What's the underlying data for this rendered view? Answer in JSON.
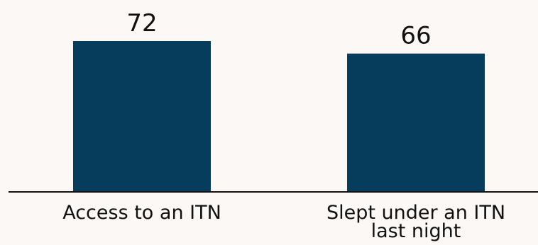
{
  "chart_data": {
    "type": "bar",
    "categories": [
      "Access to an ITN",
      "Slept under an ITN last night"
    ],
    "category_lines": [
      [
        "Access to an ITN"
      ],
      [
        "Slept under an ITN",
        "last night"
      ]
    ],
    "values": [
      72,
      66
    ],
    "data_labels": [
      "72",
      "66"
    ],
    "title": "",
    "xlabel": "",
    "ylabel": "",
    "ylim": [
      0,
      80
    ],
    "grid": false,
    "legend": "none"
  },
  "colors": {
    "background": "#fbf8f5",
    "bar": "#073d5c",
    "axis": "#111111",
    "text": "#111111"
  }
}
